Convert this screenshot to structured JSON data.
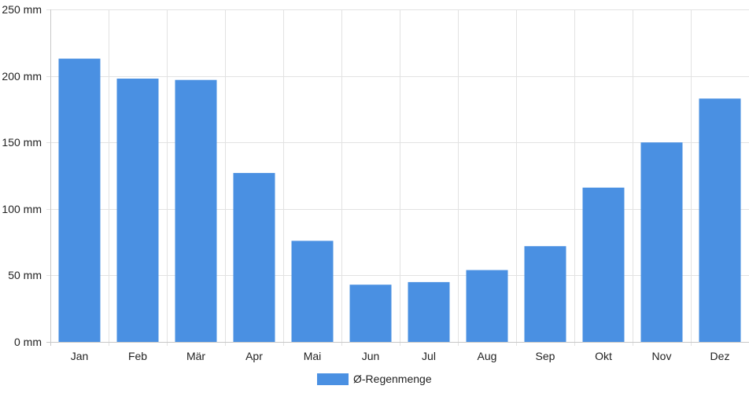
{
  "chart_data": {
    "type": "bar",
    "categories": [
      "Jan",
      "Feb",
      "Mär",
      "Apr",
      "Mai",
      "Jun",
      "Jul",
      "Aug",
      "Sep",
      "Okt",
      "Nov",
      "Dez"
    ],
    "series": [
      {
        "name": "Ø-Regenmenge",
        "values": [
          213,
          198,
          197,
          127,
          76,
          43,
          45,
          54,
          72,
          116,
          150,
          183
        ],
        "color": "#4a90e2"
      }
    ],
    "y_unit_suffix": " mm",
    "y_ticks": [
      0,
      50,
      100,
      150,
      200,
      250
    ],
    "ylim": [
      0,
      250
    ],
    "grid": true,
    "legend_position": "bottom"
  }
}
